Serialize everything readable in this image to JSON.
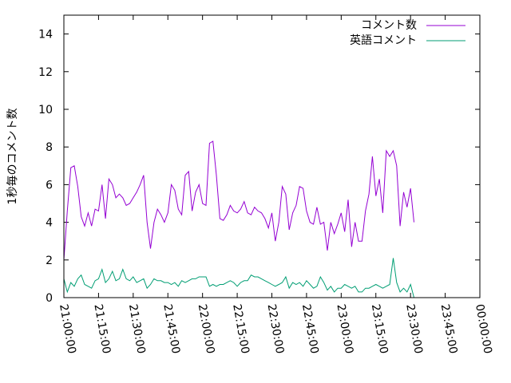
{
  "chart_data": {
    "type": "line",
    "title": "",
    "xlabel": "",
    "ylabel": "1秒毎のコメント数",
    "ylim": [
      0,
      15
    ],
    "yticks": [
      "0",
      "2",
      "4",
      "6",
      "8",
      "10",
      "12",
      "14"
    ],
    "xticks": [
      "21:00:00",
      "21:15:00",
      "21:30:00",
      "21:45:00",
      "22:00:00",
      "22:15:00",
      "22:30:00",
      "22:45:00",
      "23:00:00",
      "23:15:00",
      "23:30:00",
      "23:45:00",
      "00:00:00"
    ],
    "grid": false,
    "legend_position": "top-right",
    "x_step_minutes": 1.5,
    "series": [
      {
        "name": "コメント数",
        "color": "#9400d3",
        "values": [
          2.0,
          4.6,
          6.9,
          7.0,
          5.9,
          4.3,
          3.8,
          4.5,
          3.8,
          4.7,
          4.6,
          6.0,
          4.2,
          6.3,
          6.0,
          5.3,
          5.5,
          5.3,
          4.9,
          5.0,
          5.3,
          5.6,
          6.0,
          6.5,
          4.0,
          2.6,
          4.0,
          4.7,
          4.4,
          4.0,
          4.5,
          6.0,
          5.7,
          4.7,
          4.4,
          6.5,
          6.7,
          4.6,
          5.6,
          6.0,
          5.0,
          4.9,
          8.2,
          8.3,
          6.5,
          4.2,
          4.1,
          4.4,
          4.9,
          4.6,
          4.5,
          4.7,
          5.1,
          4.5,
          4.4,
          4.8,
          4.6,
          4.5,
          4.2,
          3.7,
          4.5,
          3.0,
          4.0,
          5.9,
          5.5,
          3.6,
          4.5,
          4.9,
          5.9,
          5.8,
          4.6,
          4.0,
          3.9,
          4.8,
          3.9,
          4.0,
          2.5,
          4.0,
          3.4,
          3.9,
          4.5,
          3.5,
          5.2,
          2.7,
          4.0,
          3.0,
          3.0,
          4.6,
          5.5,
          7.5,
          5.4,
          6.3,
          4.5,
          7.8,
          7.5,
          7.8,
          7.0,
          3.8,
          5.6,
          4.8,
          5.8,
          4.0
        ]
      },
      {
        "name": "英語コメント",
        "color": "#009e73",
        "values": [
          1.0,
          0.3,
          0.8,
          0.6,
          1.0,
          1.2,
          0.7,
          0.6,
          0.5,
          0.9,
          1.0,
          1.5,
          0.8,
          1.0,
          1.4,
          0.9,
          1.0,
          1.5,
          1.0,
          0.9,
          1.1,
          0.8,
          0.9,
          1.0,
          0.5,
          0.7,
          1.0,
          0.9,
          0.9,
          0.8,
          0.8,
          0.7,
          0.8,
          0.6,
          0.9,
          0.8,
          0.9,
          1.0,
          1.0,
          1.1,
          1.1,
          1.1,
          0.6,
          0.7,
          0.6,
          0.7,
          0.7,
          0.8,
          0.9,
          0.8,
          0.6,
          0.8,
          0.9,
          0.9,
          1.2,
          1.1,
          1.1,
          1.0,
          0.9,
          0.8,
          0.7,
          0.6,
          0.7,
          0.8,
          1.1,
          0.5,
          0.8,
          0.7,
          0.8,
          0.6,
          0.9,
          0.7,
          0.5,
          0.6,
          1.1,
          0.8,
          0.4,
          0.6,
          0.3,
          0.5,
          0.5,
          0.7,
          0.6,
          0.5,
          0.6,
          0.3,
          0.3,
          0.5,
          0.5,
          0.6,
          0.7,
          0.6,
          0.5,
          0.6,
          0.7,
          2.1,
          0.8,
          0.3,
          0.5,
          0.3,
          0.7,
          0.0
        ]
      }
    ]
  }
}
